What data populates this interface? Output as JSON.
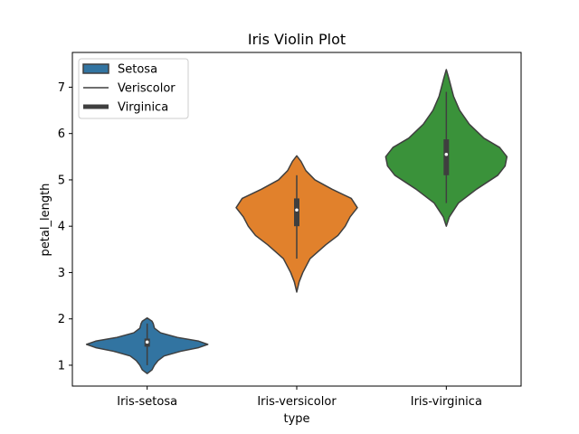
{
  "chart_data": {
    "type": "violin",
    "title": "Iris Violin Plot",
    "xlabel": "type",
    "ylabel": "petal_length",
    "categories": [
      "Iris-setosa",
      "Iris-versicolor",
      "Iris-virginica"
    ],
    "ylim": [
      0.55,
      7.75
    ],
    "yticks": [
      1,
      2,
      3,
      4,
      5,
      6,
      7
    ],
    "grid": false,
    "legend": {
      "placement": "top-left",
      "entries": [
        {
          "label": "Setosa",
          "style": "patch"
        },
        {
          "label": "Veriscolor",
          "style": "thin-line"
        },
        {
          "label": "Virginica",
          "style": "thick-line"
        }
      ]
    },
    "series": [
      {
        "category": "Iris-setosa",
        "color": "#3274a1",
        "min": 1.0,
        "q1": 1.4,
        "median": 1.5,
        "q3": 1.575,
        "max": 1.9,
        "density": [
          [
            0.82,
            0.0
          ],
          [
            0.9,
            0.08
          ],
          [
            1.0,
            0.12
          ],
          [
            1.1,
            0.18
          ],
          [
            1.2,
            0.28
          ],
          [
            1.3,
            0.55
          ],
          [
            1.38,
            0.85
          ],
          [
            1.45,
            1.0
          ],
          [
            1.52,
            0.85
          ],
          [
            1.6,
            0.5
          ],
          [
            1.7,
            0.22
          ],
          [
            1.8,
            0.12
          ],
          [
            1.9,
            0.1
          ],
          [
            1.95,
            0.08
          ],
          [
            2.02,
            0.0
          ]
        ]
      },
      {
        "category": "Iris-versicolor",
        "color": "#e1812c",
        "min": 3.3,
        "q1": 4.0,
        "median": 4.35,
        "q3": 4.6,
        "max": 5.1,
        "density": [
          [
            2.58,
            0.0
          ],
          [
            2.8,
            0.04
          ],
          [
            3.0,
            0.1
          ],
          [
            3.3,
            0.22
          ],
          [
            3.6,
            0.48
          ],
          [
            3.8,
            0.68
          ],
          [
            4.0,
            0.8
          ],
          [
            4.2,
            0.88
          ],
          [
            4.4,
            1.0
          ],
          [
            4.6,
            0.9
          ],
          [
            4.8,
            0.58
          ],
          [
            5.0,
            0.3
          ],
          [
            5.2,
            0.15
          ],
          [
            5.4,
            0.07
          ],
          [
            5.52,
            0.0
          ]
        ]
      },
      {
        "category": "Iris-virginica",
        "color": "#3a923a",
        "min": 4.5,
        "q1": 5.1,
        "median": 5.55,
        "q3": 5.875,
        "max": 6.9,
        "density": [
          [
            4.0,
            0.0
          ],
          [
            4.2,
            0.05
          ],
          [
            4.5,
            0.2
          ],
          [
            4.8,
            0.5
          ],
          [
            5.1,
            0.85
          ],
          [
            5.3,
            0.97
          ],
          [
            5.5,
            1.0
          ],
          [
            5.7,
            0.88
          ],
          [
            5.9,
            0.62
          ],
          [
            6.2,
            0.38
          ],
          [
            6.5,
            0.22
          ],
          [
            6.8,
            0.12
          ],
          [
            7.0,
            0.08
          ],
          [
            7.2,
            0.04
          ],
          [
            7.38,
            0.0
          ]
        ]
      }
    ]
  }
}
